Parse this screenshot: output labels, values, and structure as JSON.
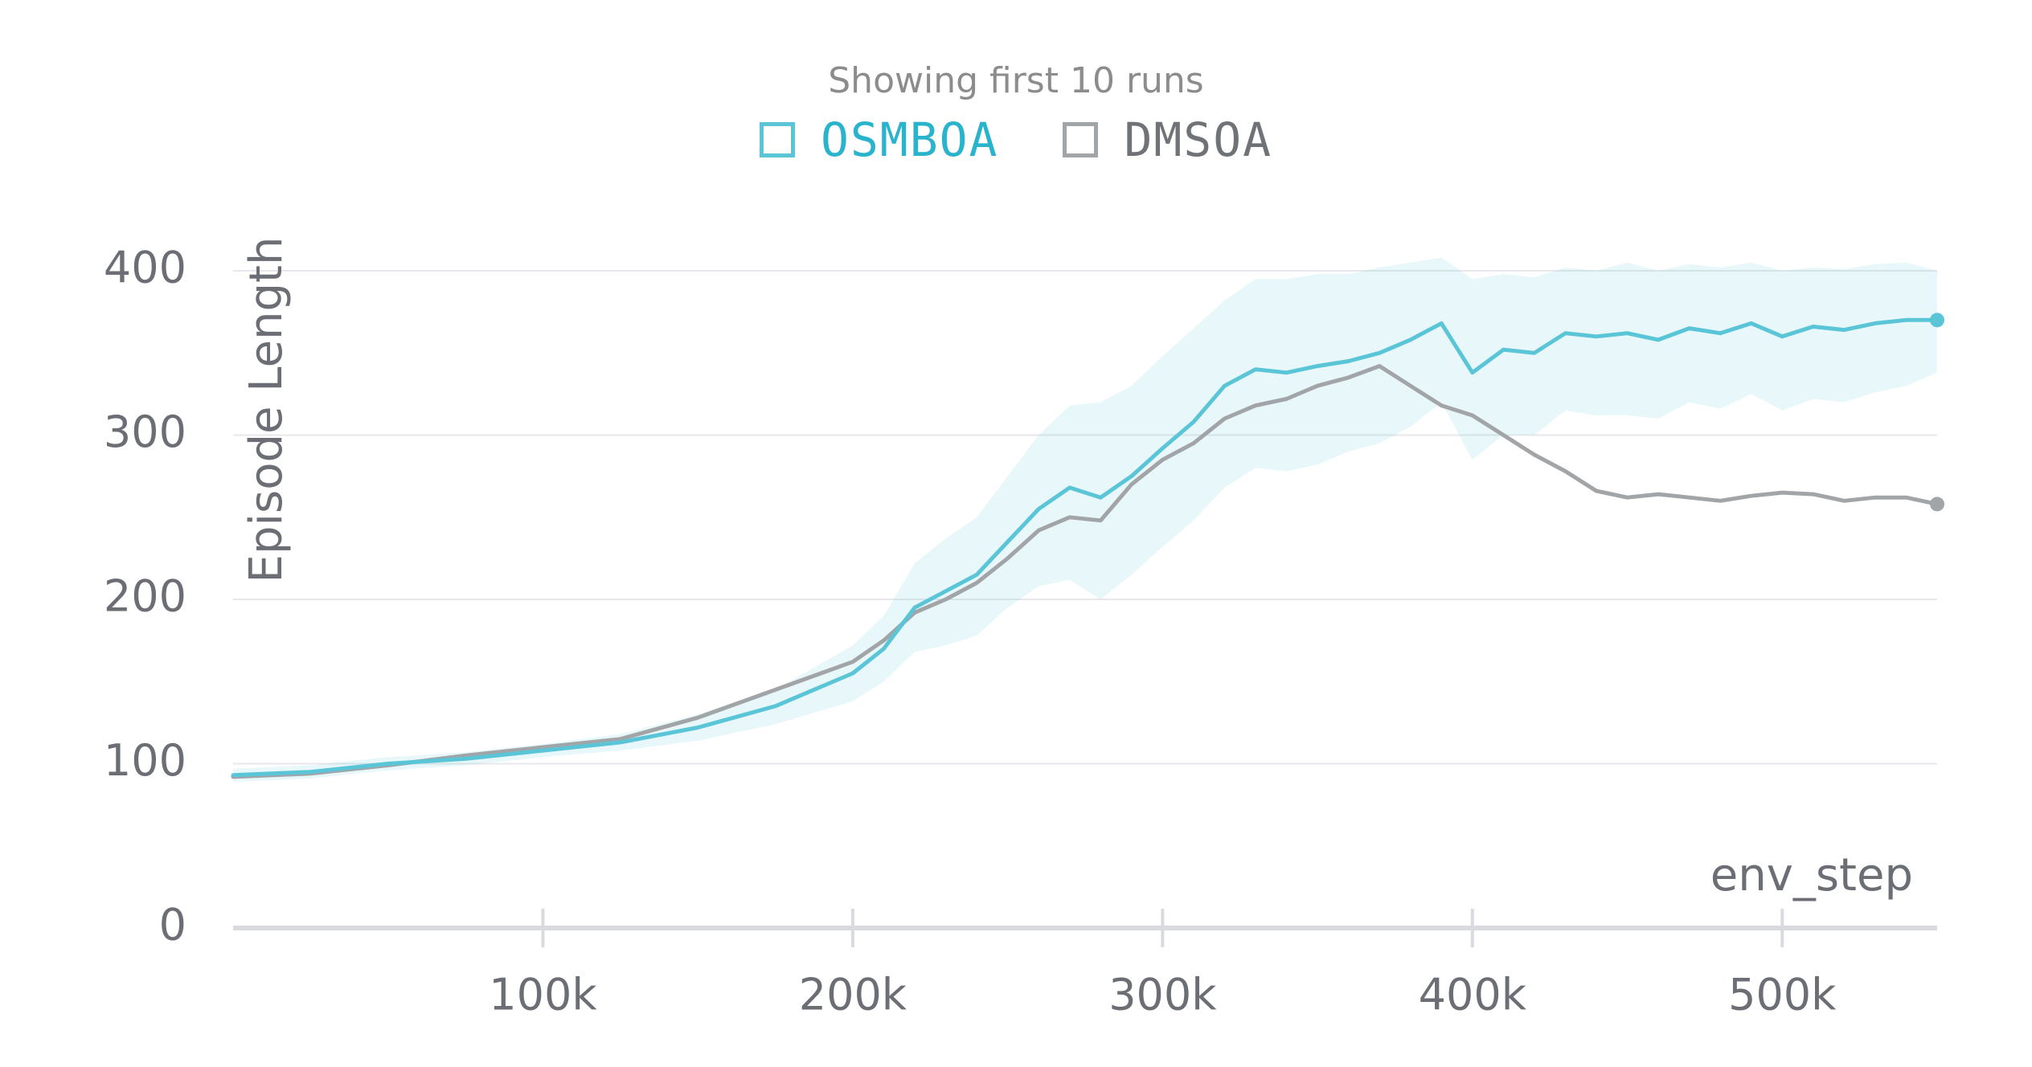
{
  "legend": {
    "title": "Showing first 10 runs"
  },
  "colors": {
    "osmboa": "#5bc5d8",
    "osmboa_text": "#2ab3cc",
    "dmsoa": "#a2a5a8",
    "dmsoa_text": "#6f7378",
    "grid": "#e8e8ec",
    "axis": "#d9dadf",
    "tick_text": "#6c6e75"
  },
  "chart_data": {
    "type": "line",
    "title": "",
    "xlabel": "env_step",
    "ylabel": "Episode Length",
    "xlim": [
      0,
      550000
    ],
    "ylim": [
      0,
      400
    ],
    "x_ticks": [
      100000,
      200000,
      300000,
      400000,
      500000
    ],
    "x_tick_labels": [
      "100k",
      "200k",
      "300k",
      "400k",
      "500k"
    ],
    "y_ticks": [
      0,
      100,
      200,
      300,
      400
    ],
    "y_tick_labels": [
      "0",
      "100",
      "200",
      "300",
      "400"
    ],
    "grid": true,
    "legend_position": "top-center",
    "x": [
      0,
      25000,
      50000,
      75000,
      100000,
      125000,
      150000,
      175000,
      200000,
      210000,
      220000,
      230000,
      240000,
      250000,
      260000,
      270000,
      280000,
      290000,
      300000,
      310000,
      320000,
      330000,
      340000,
      350000,
      360000,
      370000,
      380000,
      390000,
      400000,
      410000,
      420000,
      430000,
      440000,
      450000,
      460000,
      470000,
      480000,
      490000,
      500000,
      510000,
      520000,
      530000,
      540000,
      550000
    ],
    "series": [
      {
        "name": "OSMBOA",
        "values": [
          93,
          95,
          100,
          103,
          108,
          113,
          122,
          135,
          155,
          170,
          195,
          205,
          215,
          235,
          255,
          268,
          262,
          275,
          292,
          308,
          330,
          340,
          338,
          342,
          345,
          350,
          358,
          368,
          338,
          352,
          350,
          362,
          360,
          362,
          358,
          365,
          362,
          368,
          360,
          366,
          364,
          368,
          370,
          370
        ],
        "band": {
          "upper": [
            97,
            99,
            104,
            107,
            112,
            118,
            130,
            145,
            172,
            190,
            222,
            237,
            250,
            275,
            300,
            318,
            320,
            330,
            348,
            365,
            382,
            395,
            395,
            398,
            398,
            402,
            405,
            408,
            395,
            398,
            396,
            402,
            400,
            405,
            400,
            404,
            402,
            405,
            400,
            402,
            401,
            404,
            405,
            400
          ],
          "lower": [
            89,
            91,
            96,
            99,
            104,
            108,
            114,
            124,
            138,
            150,
            168,
            172,
            178,
            195,
            208,
            212,
            200,
            215,
            232,
            248,
            268,
            280,
            278,
            282,
            290,
            295,
            305,
            320,
            285,
            300,
            300,
            315,
            312,
            312,
            310,
            320,
            316,
            325,
            315,
            322,
            320,
            326,
            330,
            338
          ]
        }
      },
      {
        "name": "DMSOA",
        "values": [
          92,
          94,
          99,
          105,
          110,
          115,
          128,
          145,
          162,
          175,
          192,
          200,
          210,
          225,
          242,
          250,
          248,
          270,
          285,
          295,
          310,
          318,
          322,
          330,
          335,
          342,
          330,
          318,
          312,
          300,
          288,
          278,
          266,
          262,
          264,
          262,
          260,
          263,
          265,
          264,
          260,
          262,
          262,
          258
        ]
      }
    ]
  }
}
